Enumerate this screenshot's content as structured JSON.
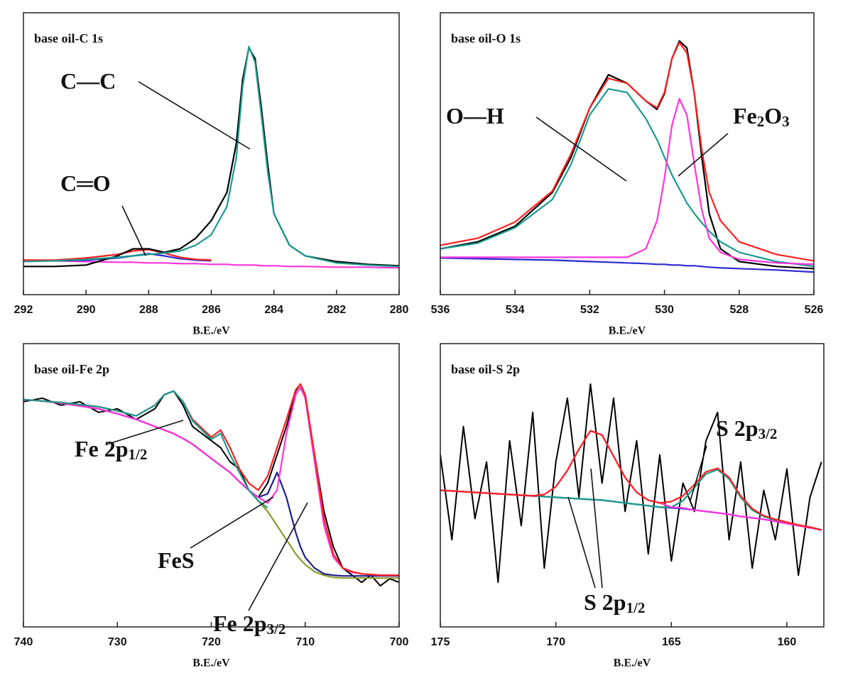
{
  "chart_data": [
    {
      "type": "line",
      "title": "base oil-C 1s",
      "x_label": "B.E./eV",
      "x": [
        292,
        291,
        290,
        289,
        288.5,
        288,
        287.5,
        287,
        286.5,
        286,
        285.5,
        285.2,
        285,
        284.8,
        284.6,
        284.4,
        284.2,
        284,
        283.5,
        283,
        282,
        281,
        280
      ],
      "xlim": [
        292,
        280
      ],
      "xticks": [
        292,
        290,
        288,
        286,
        284,
        282,
        280
      ],
      "ylim": [
        0,
        400
      ],
      "series": [
        {
          "color": "#ff33dd",
          "values": [
            49,
            48,
            47,
            46,
            46,
            45,
            45,
            44,
            44,
            43,
            43,
            42,
            42,
            42,
            42,
            41,
            41,
            41,
            40,
            40,
            39,
            39,
            38
          ]
        },
        {
          "color": "#2a2ad0",
          "values": [
            48,
            48,
            49,
            52,
            55,
            58,
            55,
            51,
            49,
            48,
            null,
            null,
            null,
            null,
            null,
            null,
            null,
            null,
            null,
            null,
            null,
            null,
            null
          ]
        },
        {
          "color": "#ff2020",
          "values": [
            49,
            49,
            52,
            57,
            62,
            64,
            59,
            53,
            50,
            49,
            null,
            null,
            null,
            null,
            null,
            null,
            null,
            null,
            null,
            null,
            null,
            null,
            null
          ]
        },
        {
          "color": "#000000",
          "values": [
            40,
            40,
            42,
            55,
            65,
            65,
            60,
            65,
            80,
            105,
            145,
            215,
            305,
            350,
            335,
            265,
            185,
            115,
            70,
            55,
            47,
            43,
            41
          ]
        },
        {
          "color": "#1a9a8c",
          "values": [
            47,
            48,
            50,
            53,
            55,
            57,
            59,
            62,
            70,
            85,
            125,
            195,
            295,
            352,
            330,
            255,
            175,
            115,
            70,
            55,
            45,
            42,
            40
          ]
        }
      ],
      "annotations": [
        {
          "parts": [
            {
              "text": "C—C"
            }
          ]
        },
        {
          "parts": [
            {
              "text": "C═O"
            }
          ]
        }
      ]
    },
    {
      "type": "line",
      "title": "base oil-O 1s",
      "x_label": "B.E./eV",
      "x": [
        536,
        535,
        534,
        533,
        532.5,
        532,
        531.5,
        531,
        530.5,
        530.2,
        530,
        529.8,
        529.6,
        529.4,
        529.2,
        529,
        528.8,
        528.5,
        528,
        527,
        526
      ],
      "xlim": [
        536,
        526
      ],
      "xticks": [
        536,
        534,
        532,
        530,
        528,
        526
      ],
      "ylim": [
        0,
        400
      ],
      "series": [
        {
          "color": "#2a2ad0",
          "values": [
            52,
            51,
            50,
            49,
            48,
            47,
            46,
            45,
            44,
            43,
            43,
            42,
            42,
            41,
            41,
            40,
            39,
            38,
            37,
            35,
            32
          ]
        },
        {
          "color": "#000000",
          "values": [
            65,
            75,
            97,
            145,
            195,
            265,
            312,
            300,
            275,
            263,
            285,
            335,
            360,
            350,
            285,
            195,
            115,
            65,
            47,
            40,
            37
          ]
        },
        {
          "color": "#ff2020",
          "values": [
            70,
            80,
            103,
            147,
            200,
            265,
            307,
            300,
            275,
            265,
            287,
            335,
            358,
            343,
            285,
            205,
            145,
            105,
            75,
            57,
            48
          ]
        },
        {
          "color": "#1a9a8c",
          "values": [
            65,
            73,
            95,
            135,
            185,
            255,
            292,
            287,
            250,
            220,
            195,
            170,
            150,
            130,
            115,
            102,
            90,
            75,
            60,
            47,
            40
          ]
        },
        {
          "color": "#ff33dd",
          "values": [
            53,
            53,
            53,
            53,
            53,
            53,
            53,
            53,
            65,
            105,
            165,
            240,
            278,
            255,
            185,
            120,
            80,
            60,
            50,
            45,
            43
          ]
        }
      ],
      "annotations": [
        {
          "parts": [
            {
              "text": "O—H"
            }
          ]
        },
        {
          "parts": [
            {
              "text": "Fe"
            },
            {
              "text": "2",
              "sub": true
            },
            {
              "text": "O"
            },
            {
              "text": "3",
              "sub": true
            }
          ]
        }
      ]
    },
    {
      "type": "line",
      "title": "base oil-Fe 2p",
      "x_label": "B.E./eV",
      "x": [
        740,
        738,
        736,
        734,
        732,
        730,
        728,
        726,
        725,
        724,
        723,
        722,
        720,
        719,
        718,
        717,
        716,
        715,
        714,
        713,
        712,
        711,
        710.5,
        710,
        709,
        708,
        707,
        706,
        705,
        704,
        703,
        702,
        701,
        700
      ],
      "xlim": [
        740,
        700
      ],
      "xticks": [
        740,
        730,
        720,
        710,
        700
      ],
      "ylim": [
        0,
        400
      ],
      "series": [
        {
          "color": "#000000",
          "values": [
            318,
            323,
            313,
            318,
            303,
            308,
            293,
            308,
            328,
            333,
            313,
            283,
            263,
            253,
            233,
            223,
            193,
            183,
            203,
            243,
            283,
            333,
            343,
            323,
            243,
            163,
            113,
            83,
            73,
            63,
            73,
            58,
            68,
            63
          ]
        },
        {
          "color": "#8a9a2a",
          "values": [
            321,
            319,
            316,
            312,
            308,
            301,
            293,
            283,
            278,
            273,
            266,
            258,
            238,
            228,
            218,
            205,
            193,
            178,
            163,
            143,
            123,
            103,
            95,
            88,
            78,
            73,
            70,
            69,
            69,
            69,
            69,
            69,
            69,
            69
          ]
        },
        {
          "color": "#1e1e8c",
          "values": [
            321,
            319,
            316,
            312,
            308,
            301,
            293,
            283,
            278,
            273,
            266,
            258,
            238,
            228,
            218,
            205,
            193,
            183,
            188,
            218,
            183,
            133,
            113,
            98,
            83,
            75,
            73,
            72,
            72,
            72,
            72,
            72,
            72,
            72
          ]
        },
        {
          "color": "#ff33dd",
          "values": [
            321,
            319,
            316,
            312,
            308,
            301,
            293,
            283,
            278,
            273,
            266,
            258,
            238,
            228,
            218,
            205,
            193,
            183,
            175,
            193,
            273,
            328,
            338,
            323,
            233,
            143,
            98,
            83,
            77,
            75,
            74,
            73,
            73,
            73
          ]
        },
        {
          "color": "#ff2020",
          "values": [
            321,
            319,
            317,
            314,
            311,
            305,
            298,
            313,
            328,
            333,
            318,
            293,
            268,
            278,
            253,
            223,
            203,
            193,
            213,
            253,
            293,
            335,
            343,
            328,
            243,
            153,
            103,
            83,
            78,
            75,
            74,
            73,
            73,
            73
          ]
        },
        {
          "color": "#1a9a8c",
          "values": [
            321,
            319,
            317,
            314,
            311,
            305,
            298,
            313,
            328,
            333,
            318,
            291,
            265,
            273,
            243,
            218,
            193,
            178,
            168,
            null,
            null,
            null,
            null,
            null,
            null,
            null,
            null,
            null,
            null,
            null,
            null,
            null,
            null,
            null
          ]
        }
      ],
      "annotations": [
        {
          "parts": [
            {
              "text": "Fe 2p"
            },
            {
              "text": "1/2",
              "sub": true
            }
          ]
        },
        {
          "parts": [
            {
              "text": "FeS"
            }
          ]
        },
        {
          "parts": [
            {
              "text": "Fe 2p"
            },
            {
              "text": "3/2",
              "sub": true
            }
          ]
        }
      ]
    },
    {
      "type": "line",
      "title": "base oil-S 2p",
      "x_label": "B.E./eV",
      "x": [
        175,
        174.5,
        174,
        173.5,
        173,
        172.5,
        172,
        171.5,
        171,
        170.5,
        170,
        169.5,
        169,
        168.5,
        168,
        167.5,
        167,
        166.5,
        166,
        165.5,
        165,
        164.5,
        164,
        163.5,
        163,
        162.5,
        162,
        161.5,
        161,
        160.5,
        160,
        159.5,
        159,
        158.5
      ],
      "xlim": [
        175,
        158.4
      ],
      "xticks": [
        175,
        170,
        165,
        160
      ],
      "ylim": [
        0,
        400
      ],
      "series": [
        {
          "color": "#000000",
          "values": [
            243,
            123,
            283,
            153,
            233,
            63,
            263,
            143,
            303,
            83,
            233,
            323,
            183,
            343,
            203,
            323,
            163,
            263,
            103,
            243,
            93,
            203,
            163,
            263,
            303,
            123,
            233,
            83,
            193,
            123,
            223,
            73,
            183,
            233
          ]
        },
        {
          "color": "#2a2ad0",
          "values": [
            193,
            192,
            191,
            190,
            189,
            188,
            187,
            186,
            185,
            184,
            183,
            182,
            181,
            180,
            179,
            177,
            175,
            173,
            171,
            169,
            168,
            167,
            165,
            163,
            161,
            159,
            156,
            154,
            152,
            149,
            146,
            143,
            140,
            137
          ]
        },
        {
          "color": "#1a9a8c",
          "values": [
            193,
            192,
            191,
            190,
            189,
            188,
            187,
            186,
            185,
            184,
            183,
            182,
            181,
            180,
            179,
            177,
            175,
            173,
            171,
            169,
            169,
            178,
            197,
            216,
            222,
            209,
            183,
            165,
            156,
            151,
            147,
            144,
            141,
            137
          ]
        },
        {
          "color": "#ff33dd",
          "values": [
            193,
            192,
            191,
            190,
            189,
            188,
            187,
            186,
            185,
            187,
            198,
            221,
            251,
            277,
            271,
            241,
            211,
            190,
            179,
            175,
            169,
            168,
            165,
            163,
            161,
            159,
            156,
            154,
            152,
            149,
            146,
            143,
            140,
            137
          ]
        },
        {
          "color": "#ff2020",
          "values": [
            193,
            192,
            191,
            190,
            189,
            188,
            187,
            186,
            185,
            187,
            198,
            221,
            251,
            277,
            271,
            241,
            211,
            190,
            179,
            175,
            177,
            185,
            201,
            219,
            224,
            211,
            185,
            167,
            157,
            152,
            148,
            144,
            141,
            137
          ]
        }
      ],
      "annotations": [
        {
          "parts": [
            {
              "text": "S 2p"
            },
            {
              "text": "3/2",
              "sub": true
            }
          ]
        },
        {
          "parts": [
            {
              "text": "S 2p"
            },
            {
              "text": "1/2",
              "sub": true
            }
          ]
        }
      ]
    }
  ]
}
